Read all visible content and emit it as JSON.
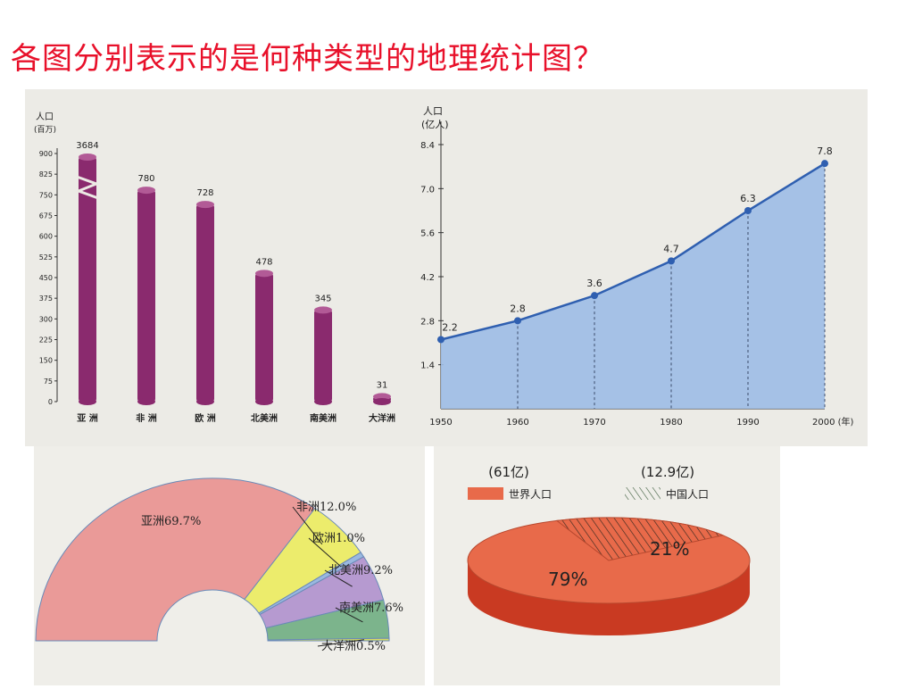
{
  "title": "各图分别表示的是何种类型的地理统计图？",
  "chart_data": [
    {
      "type": "bar",
      "ylabel": "人口",
      "yunit": "(百万)",
      "categories": [
        "亚 洲",
        "非 洲",
        "欧 洲",
        "北美洲",
        "南美洲",
        "大洋洲"
      ],
      "values": [
        3684,
        780,
        728,
        478,
        345,
        31
      ],
      "data_labels": [
        "3684",
        "780",
        "728",
        "478",
        "345",
        "31"
      ],
      "yticks": [
        "0",
        "75",
        "150",
        "225",
        "300",
        "375",
        "450",
        "525",
        "600",
        "675",
        "750",
        "825",
        "900"
      ],
      "ylim": [
        0,
        900
      ],
      "axis_break": true,
      "color": "#8a2a6e"
    },
    {
      "type": "area",
      "ylabel": "人口",
      "yunit": "(亿人)",
      "x": [
        1950,
        1960,
        1970,
        1980,
        1990,
        2000
      ],
      "xtick_labels": [
        "1950",
        "1960",
        "1970",
        "1980",
        "1990",
        "2000 (年)"
      ],
      "y": [
        2.2,
        2.8,
        3.6,
        4.7,
        6.3,
        7.8
      ],
      "data_labels": [
        "2.2",
        "2.8",
        "3.6",
        "4.7",
        "6.3",
        "7.8"
      ],
      "yticks": [
        "1.4",
        "2.8",
        "4.2",
        "5.6",
        "7.0",
        "8.4"
      ],
      "ylim": [
        0,
        8.4
      ],
      "fill_color": "#9dbde6",
      "line_color": "#2f5fb0"
    },
    {
      "type": "pie",
      "style": "semicircle-ring",
      "slices": [
        {
          "label": "亚洲69.7%",
          "value": 69.7,
          "color": "#ea9a98"
        },
        {
          "label": "非洲12.0%",
          "value": 12.0,
          "color": "#ecec6c"
        },
        {
          "label": "欧洲1.0%",
          "value": 1.0,
          "color": "#9ab8e0"
        },
        {
          "label": "北美洲9.2%",
          "value": 9.2,
          "color": "#b69ad0"
        },
        {
          "label": "南美洲7.6%",
          "value": 7.6,
          "color": "#7cb48c"
        },
        {
          "label": "大洋洲0.5%",
          "value": 0.5,
          "color": "#d8dc60"
        }
      ]
    },
    {
      "type": "pie",
      "style": "3d",
      "legend": [
        {
          "header": "(61亿)",
          "label": "世界人口",
          "color": "#e86a4a",
          "pattern": "solid"
        },
        {
          "header": "(12.9亿)",
          "label": "中国人口",
          "color": "#e86a4a",
          "pattern": "hatched"
        }
      ],
      "slices": [
        {
          "label": "79%",
          "value": 79,
          "color": "#e86a4a"
        },
        {
          "label": "21%",
          "value": 21,
          "color": "#e86a4a",
          "hatched": true
        }
      ]
    }
  ]
}
